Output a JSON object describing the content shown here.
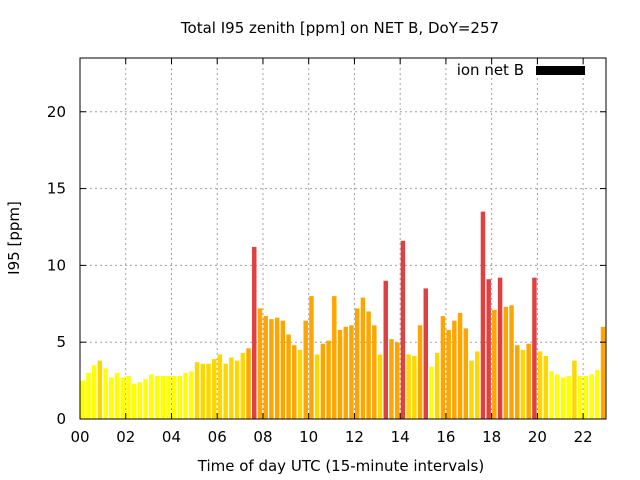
{
  "chart_data": {
    "type": "bar",
    "title": "Total I95 zenith [ppm] on NET B, DoY=257",
    "xlabel": "Time of day UTC (15-minute intervals)",
    "ylabel": "I95 [ppm]",
    "xlim": [
      0,
      23
    ],
    "ylim": [
      0,
      23.5
    ],
    "x_ticks": [
      "00",
      "02",
      "04",
      "06",
      "08",
      "10",
      "12",
      "14",
      "16",
      "18",
      "20",
      "22"
    ],
    "x_tick_values": [
      0,
      2,
      4,
      6,
      8,
      10,
      12,
      14,
      16,
      18,
      20,
      22
    ],
    "y_ticks": [
      "0",
      "5",
      "10",
      "15",
      "20"
    ],
    "y_tick_values": [
      0,
      5,
      10,
      15,
      20
    ],
    "grid": true,
    "legend_position": "top-right",
    "series": [
      {
        "name": "ion net B",
        "legend_color": "#000000",
        "values": [
          2.5,
          3.0,
          3.5,
          3.8,
          3.3,
          2.7,
          3.0,
          2.7,
          2.8,
          2.3,
          2.4,
          2.6,
          2.9,
          2.8,
          2.8,
          2.8,
          2.8,
          2.8,
          3.0,
          3.1,
          3.7,
          3.6,
          3.6,
          3.9,
          4.2,
          3.6,
          4.0,
          3.8,
          4.3,
          4.6,
          11.2,
          7.2,
          6.7,
          6.5,
          6.6,
          6.4,
          5.5,
          4.8,
          4.5,
          6.4,
          8.0,
          4.2,
          4.9,
          5.1,
          8.0,
          5.8,
          6.0,
          6.1,
          7.2,
          7.9,
          7.0,
          6.1,
          4.2,
          9.0,
          5.2,
          5.0,
          11.6,
          4.2,
          4.1,
          6.1,
          8.5,
          3.4,
          4.3,
          6.7,
          5.8,
          6.4,
          6.9,
          5.9,
          3.8,
          4.4,
          13.5,
          9.1,
          7.1,
          9.2,
          7.3,
          7.4,
          4.8,
          4.5,
          4.9,
          9.2,
          4.4,
          4.1,
          3.1,
          2.9,
          2.7,
          2.8,
          3.8,
          2.8,
          2.8,
          2.9,
          3.2,
          6.0
        ]
      }
    ],
    "bar_colors_by_level": {
      "low": "#ffff00",
      "mid_low": "#ffd700",
      "mid": "#ffa500",
      "high": "#e04040"
    },
    "color_thresholds": [
      3.5,
      4.5,
      8.0
    ]
  }
}
